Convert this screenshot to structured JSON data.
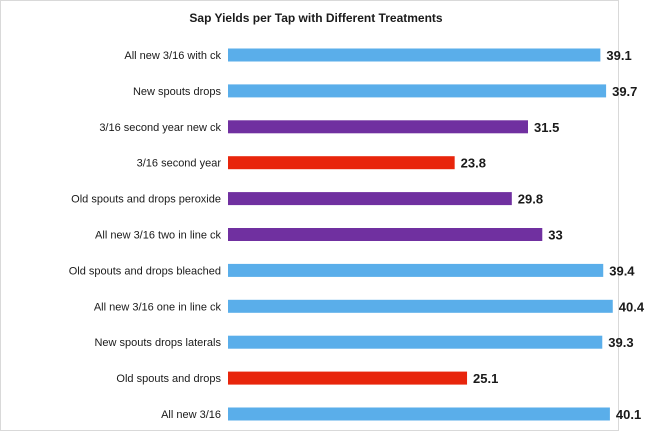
{
  "chart_data": {
    "type": "bar",
    "orientation": "horizontal",
    "title": "Sap Yields per Tap with Different Treatments",
    "categories": [
      "All new 3/16 with ck",
      "New spouts drops",
      "3/16 second year new ck",
      "3/16 second year",
      "Old spouts and drops peroxide",
      "All new 3/16 two in line ck",
      "Old spouts and drops bleached",
      "All new 3/16 one in line ck",
      "New spouts drops laterals",
      "Old spouts and drops",
      "All new 3/16"
    ],
    "values": [
      39.1,
      39.7,
      31.5,
      23.8,
      29.8,
      33,
      39.4,
      40.4,
      39.3,
      25.1,
      40.1
    ],
    "value_labels": [
      "39.1",
      "39.7",
      "31.5",
      "23.8",
      "29.8",
      "33",
      "39.4",
      "40.4",
      "39.3",
      "25.1",
      "40.1"
    ],
    "bar_colors": [
      "#5aaeea",
      "#5aaeea",
      "#7030a0",
      "#e8250c",
      "#7030a0",
      "#7030a0",
      "#5aaeea",
      "#5aaeea",
      "#5aaeea",
      "#e8250c",
      "#5aaeea"
    ],
    "xlim": [
      0,
      42
    ],
    "grid": false,
    "legend": "none"
  }
}
